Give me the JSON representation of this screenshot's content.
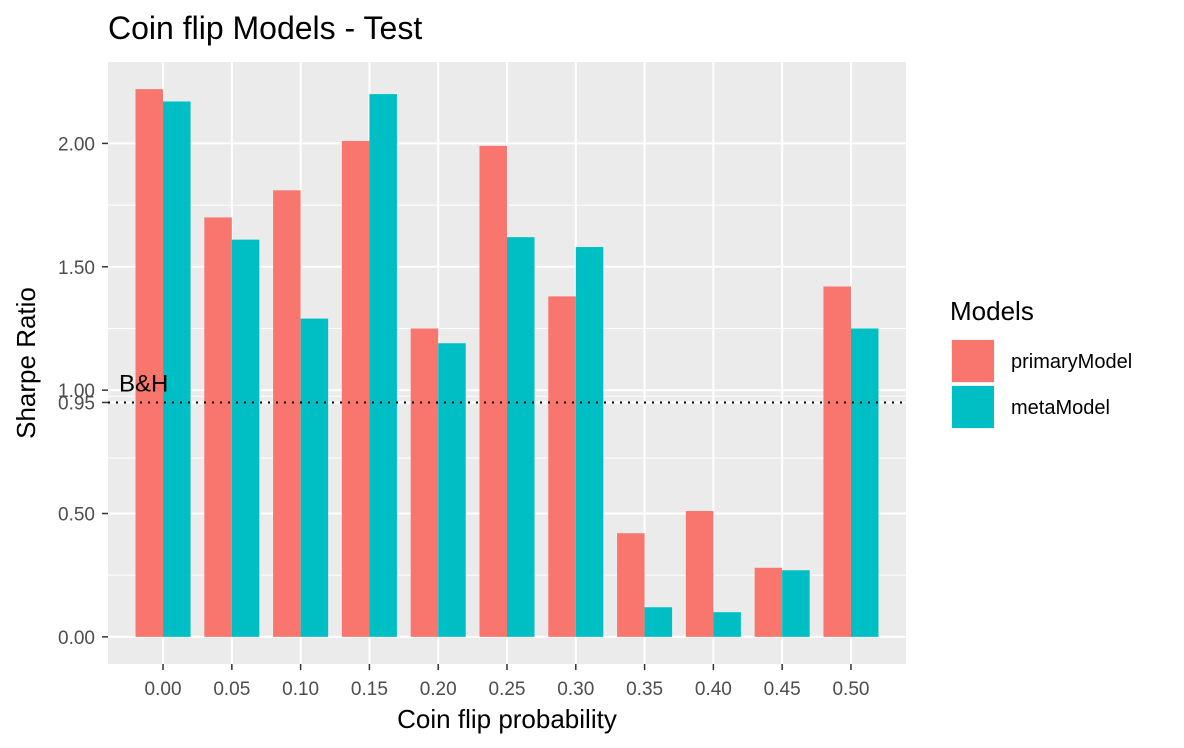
{
  "chart_data": {
    "type": "bar",
    "title": "Coin flip Models - Test",
    "xlabel": "Coin flip probability",
    "ylabel": "Sharpe Ratio",
    "categories": [
      "0.00",
      "0.05",
      "0.10",
      "0.15",
      "0.20",
      "0.25",
      "0.30",
      "0.35",
      "0.40",
      "0.45",
      "0.50"
    ],
    "series": [
      {
        "name": "primaryModel",
        "color": "#F8766D",
        "values": [
          2.22,
          1.7,
          1.81,
          2.01,
          1.25,
          1.99,
          1.38,
          0.42,
          0.51,
          0.28,
          1.42
        ]
      },
      {
        "name": "metaModel",
        "color": "#00BFC4",
        "values": [
          2.17,
          1.61,
          1.29,
          2.2,
          1.19,
          1.62,
          1.58,
          0.12,
          0.1,
          0.27,
          1.25
        ]
      }
    ],
    "yticks": [
      "0.00",
      "0.50",
      "0.95",
      "1.00",
      "1.50",
      "2.00"
    ],
    "ylim": [
      -0.11,
      2.33
    ],
    "grid": true,
    "panel_background": "#EBEBEB",
    "legend": {
      "title": "Models",
      "placement": "right"
    },
    "reference_line": {
      "y": 0.95,
      "label": "B&H",
      "style": "dotted"
    }
  }
}
